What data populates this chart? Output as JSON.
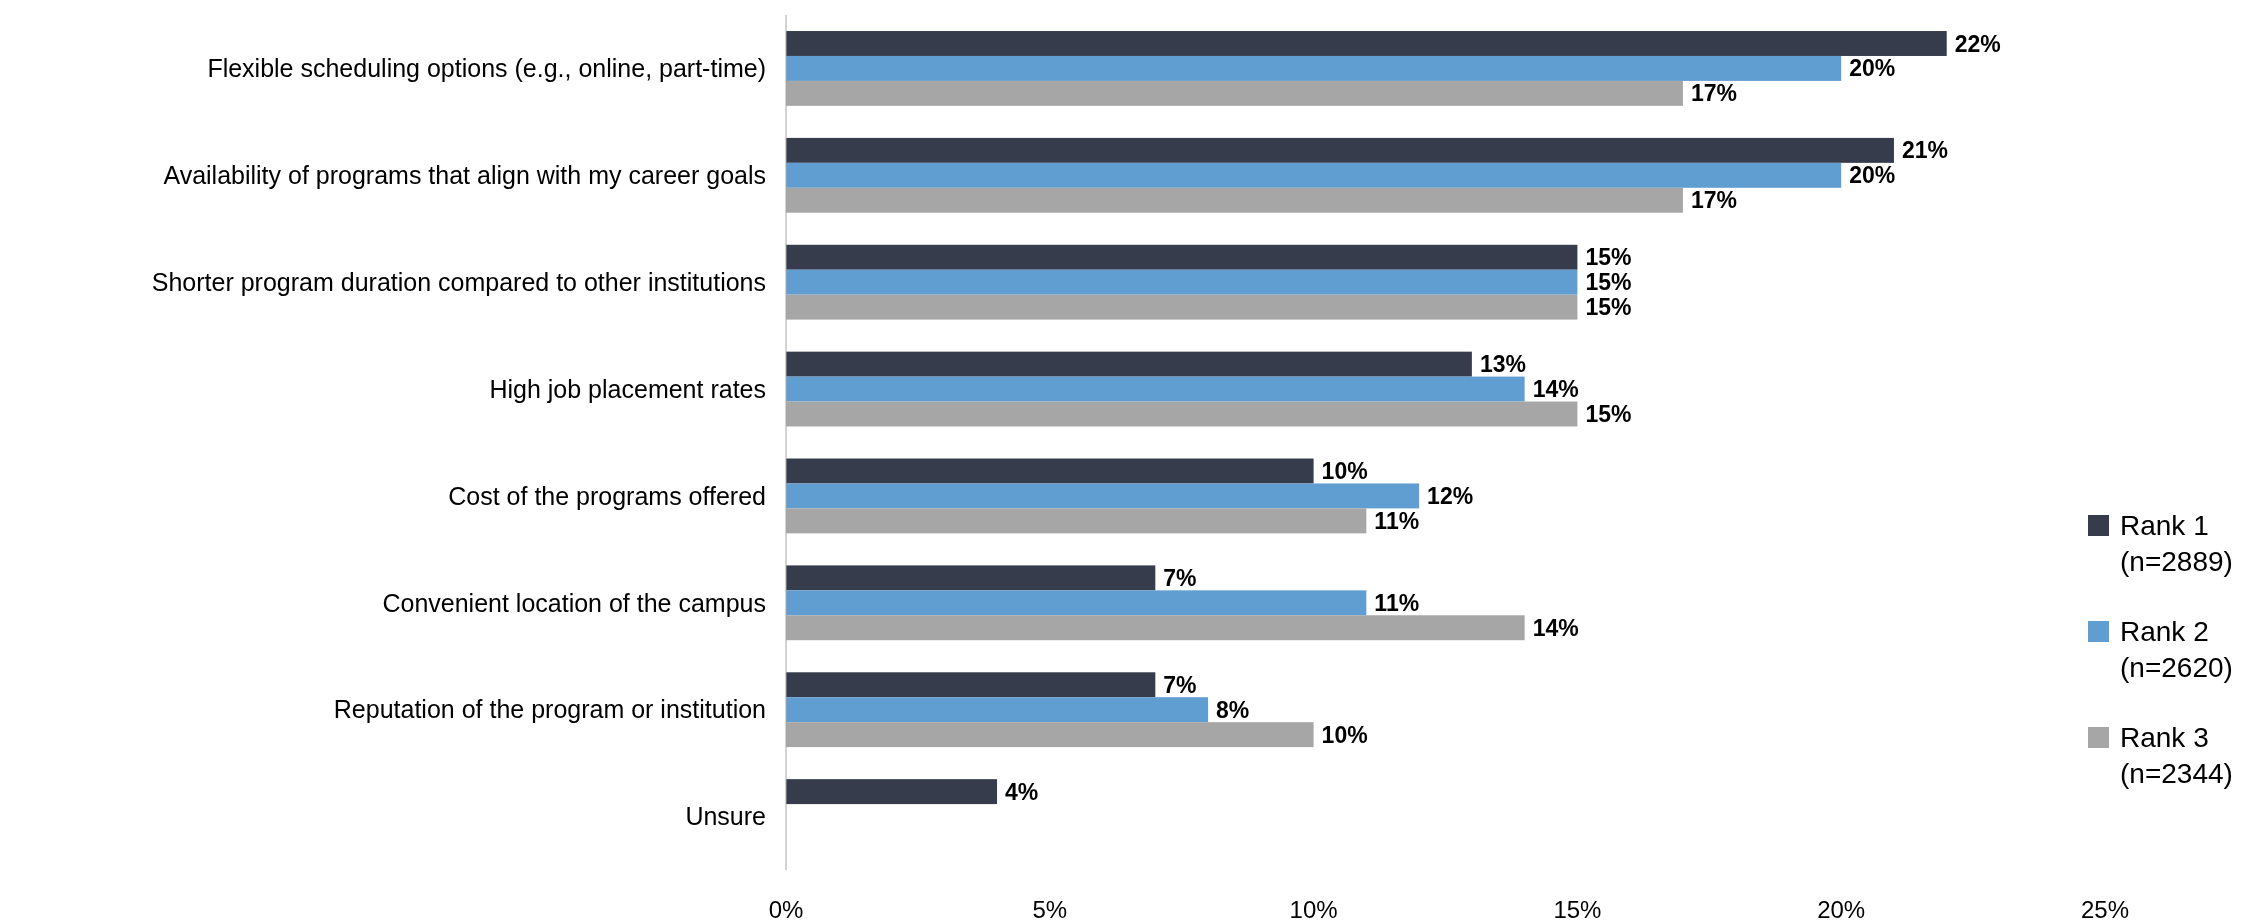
{
  "chart_data": {
    "type": "bar",
    "orientation": "horizontal",
    "categories": [
      "Flexible scheduling options (e.g., online, part-time)",
      "Availability of programs that align with my career goals",
      "Shorter program duration compared to other institutions",
      "High job placement rates",
      "Cost of the programs offered",
      "Convenient location of the campus",
      "Reputation of the program or institution",
      "Unsure"
    ],
    "series": [
      {
        "name": "Rank 1\n(n=2889)",
        "color": "#363c4b",
        "values": [
          22,
          21,
          15,
          13,
          10,
          7,
          7,
          4
        ],
        "value_labels": [
          "22%",
          "21%",
          "15%",
          "13%",
          "10%",
          "7%",
          "7%",
          "4%"
        ]
      },
      {
        "name": "Rank 2\n(n=2620)",
        "color": "#609dd1",
        "values": [
          20,
          20,
          15,
          14,
          12,
          11,
          8,
          null
        ],
        "value_labels": [
          "20%",
          "20%",
          "15%",
          "14%",
          "12%",
          "11%",
          "8%",
          null
        ]
      },
      {
        "name": "Rank 3\n(n=2344)",
        "color": "#a6a6a6",
        "values": [
          17,
          17,
          15,
          15,
          11,
          14,
          10,
          null
        ],
        "value_labels": [
          "17%",
          "17%",
          "15%",
          "15%",
          "11%",
          "14%",
          "10%",
          null
        ]
      }
    ],
    "xlim": [
      0,
      25
    ],
    "xticks": [
      {
        "value": 0,
        "label": "0%"
      },
      {
        "value": 5,
        "label": "5%"
      },
      {
        "value": 10,
        "label": "10%"
      },
      {
        "value": 15,
        "label": "15%"
      },
      {
        "value": 20,
        "label": "20%"
      },
      {
        "value": 25,
        "label": "25%"
      }
    ],
    "grid": false,
    "legend": "right"
  }
}
